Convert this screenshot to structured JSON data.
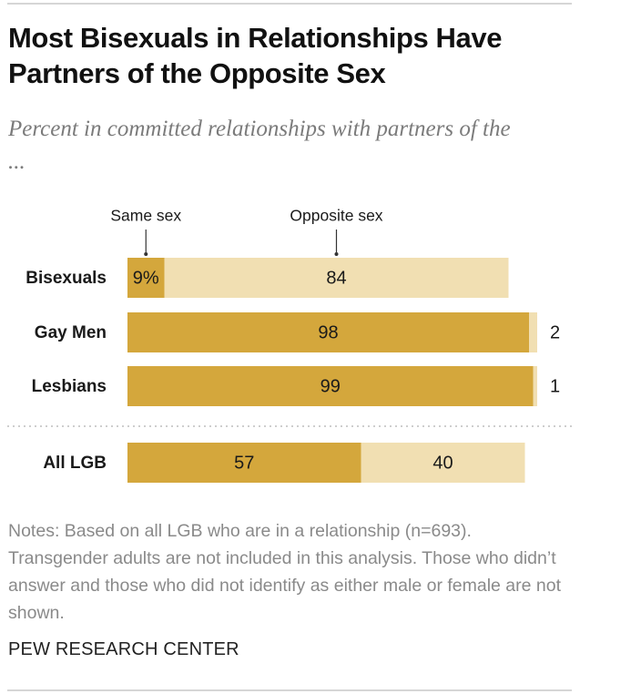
{
  "title": "Most Bisexuals in Relationships Have Partners of the Opposite Sex",
  "subtitle": "Percent in committed relationships with partners of the ...",
  "notes": "Notes: Based on all LGB who are in a relationship (n=693). Transgender adults are not included in this analysis. Those who didn’t answer and those who did not identify as either male or female are not shown.",
  "source": "PEW RESEARCH CENTER",
  "colors": {
    "same_sex": "#d4a73c",
    "opposite_sex": "#f1dfb2"
  },
  "chart_data": {
    "type": "bar",
    "orientation": "horizontal",
    "stacked": true,
    "categories": [
      "Bisexuals",
      "Gay Men",
      "Lesbians",
      "All LGB"
    ],
    "series": [
      {
        "name": "Same sex",
        "values": [
          9,
          98,
          99,
          57
        ],
        "labels": [
          "9%",
          "98",
          "99",
          "57"
        ]
      },
      {
        "name": "Opposite sex",
        "values": [
          84,
          2,
          1,
          40
        ],
        "labels": [
          "84",
          "2",
          "1",
          "40"
        ]
      }
    ],
    "xlim": [
      0,
      100
    ],
    "grid": false,
    "legend": "annotations above first bar"
  }
}
